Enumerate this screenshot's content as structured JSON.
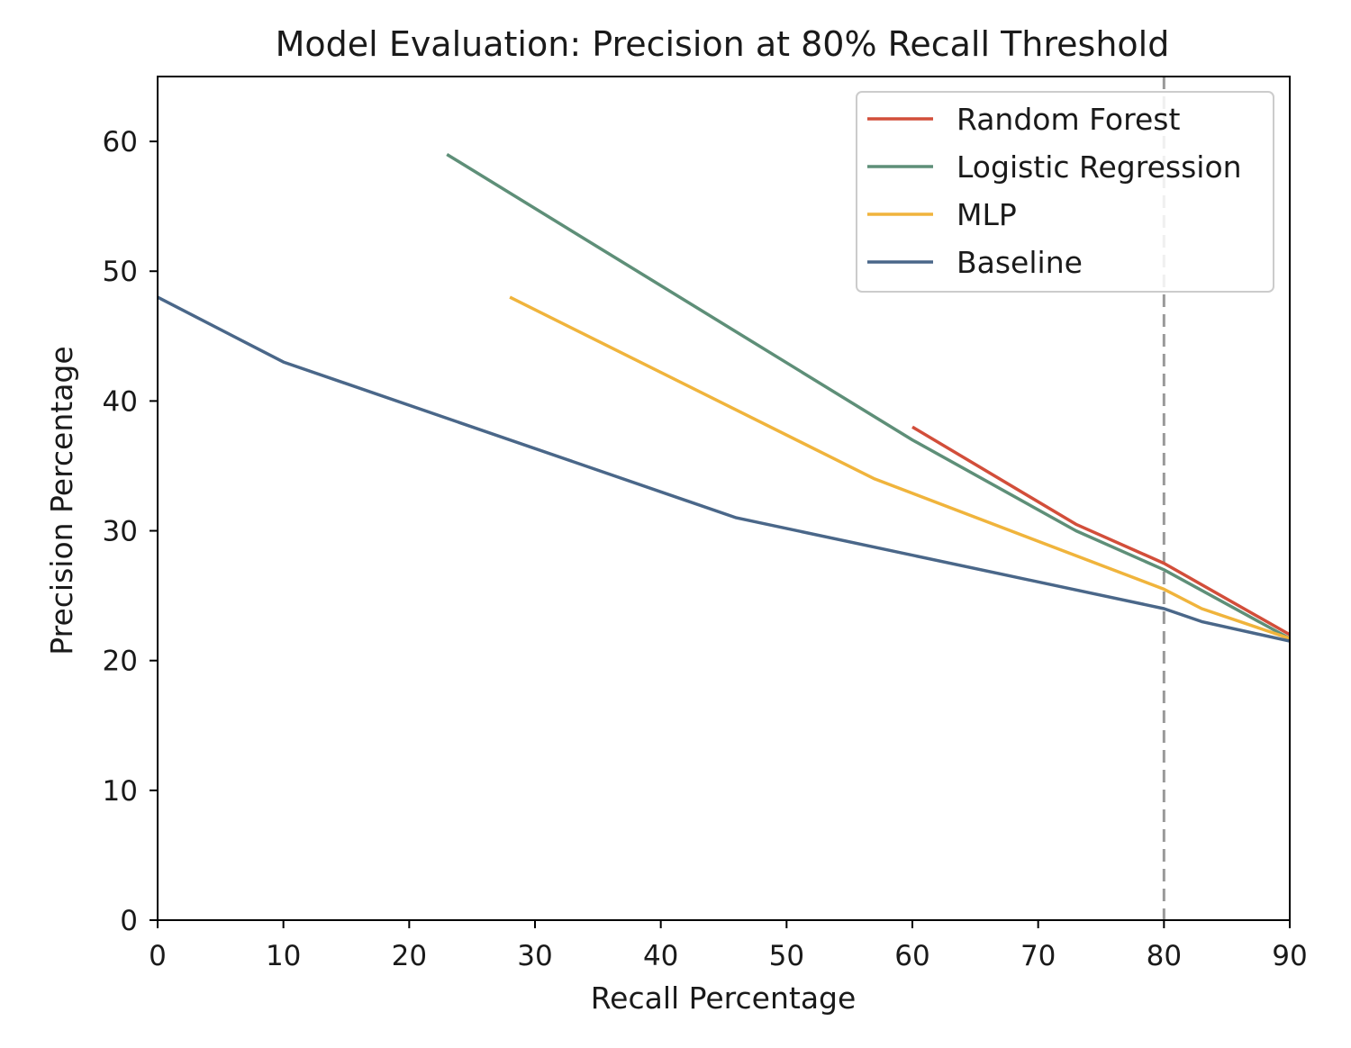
{
  "chart_data": {
    "type": "line",
    "title": "Model Evaluation: Precision at 80% Recall Threshold",
    "xlabel": "Recall Percentage",
    "ylabel": "Precision Percentage",
    "xlim": [
      0,
      90
    ],
    "ylim": [
      0,
      65
    ],
    "xticks": [
      0,
      10,
      20,
      30,
      40,
      50,
      60,
      70,
      80,
      90
    ],
    "yticks": [
      0,
      10,
      20,
      30,
      40,
      50,
      60
    ],
    "grid": false,
    "legend_position": "top-right",
    "threshold_line": {
      "x": 80,
      "style": "dashed",
      "color": "#999999"
    },
    "series": [
      {
        "name": "Random Forest",
        "color": "#d24e3a",
        "x": [
          60,
          73,
          80,
          90
        ],
        "y": [
          38,
          30.5,
          27.5,
          22
        ]
      },
      {
        "name": "Logistic Regression",
        "color": "#5e8f78",
        "x": [
          23,
          60,
          73,
          80,
          90
        ],
        "y": [
          59,
          37,
          30,
          27,
          21.7
        ]
      },
      {
        "name": "MLP",
        "color": "#f0b43c",
        "x": [
          28,
          57,
          80,
          83,
          90
        ],
        "y": [
          48,
          34,
          25.5,
          24,
          21.7
        ]
      },
      {
        "name": "Baseline",
        "color": "#4a6789",
        "x": [
          0,
          10,
          46,
          80,
          83,
          90
        ],
        "y": [
          48,
          43,
          31,
          24,
          23,
          21.5
        ]
      }
    ]
  }
}
